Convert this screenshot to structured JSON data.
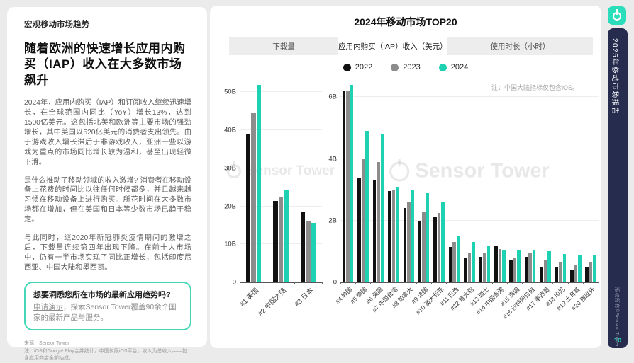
{
  "left_panel": {
    "eyebrow": "宏观移动市场趋势",
    "heading": "随着欧洲的快速增长应用内购买（IAP）收入在大多数市场飙升",
    "paragraphs": [
      "2024年，应用内购买（IAP）和订阅收入继续迅速增长，在全球范围内同比（YoY）增长13%，达到1500亿美元。这包括北美和欧洲等主要市场的强劲增长，其中美国以520亿美元的消费者支出领先。由于游戏收入增长滞后于非游戏收入，亚洲一些以游戏为重点的市场同比增长较为温和，甚至出现轻微下滑。",
      "是什么推动了移动领域的收入激增? 消费者在移动设备上花费的时间比以往任何时候都多，并且越来越习惯在移动设备上进行购买。所花时间在大多数市场都在增加，但在美国和日本等少数市场已趋于稳定。",
      "与此同时，继2020年新冠肺炎疫情期间的激增之后，下载量连续第四年出现下降。在前十大市场中，仍有一半市场实现了同比正增长，包括印度尼西亚、中国大陆和墨西哥。"
    ],
    "cta": {
      "title": "想要洞悉您所在市场的最新应用趋势吗?",
      "link": "申请演示",
      "body_rest": "，探索Sensor Tower覆盖90余个国家的最新产品与服务。"
    },
    "source": "来源：Sensor Tower",
    "note": "注：iOS和Google Play合并统计，中国仅限iOS平台。收入为总收入——包含应用商店全部抽成。"
  },
  "chart_card": {
    "title": "2024年移动市场TOP20",
    "tabs": [
      {
        "label": "下载量",
        "active": false
      },
      {
        "label": "应用内购买（IAP）收入（美元）",
        "active": true
      },
      {
        "label": "使用时长（小时）",
        "active": false
      }
    ],
    "legend": [
      {
        "label": "2022",
        "color": "#111111"
      },
      {
        "label": "2023",
        "color": "#8c8c8c"
      },
      {
        "label": "2024",
        "color": "#1ed1b2"
      }
    ],
    "note": "注：中国大陆指标仅包含iOS。",
    "watermark": "Sensor Tower"
  },
  "sidebar": {
    "report_title": "2025年移动市场报告",
    "copyright": "版权所有©Sensor Tower",
    "page_number": "10",
    "bar_color": "#262c4e",
    "icon_color": "#2adebc",
    "icon": "sensor-tower-logo"
  },
  "chart_data": [
    {
      "type": "bar",
      "title": "2024年移动市场TOP20 — 应用内购买（IAP）收入 前3大市场（十亿美元）",
      "categories": [
        "#1 美国",
        "#2 中国大陆",
        "#3 日本"
      ],
      "series": [
        {
          "name": "2022",
          "color": "#111111",
          "values": [
            39,
            21.5,
            18.5
          ]
        },
        {
          "name": "2023",
          "color": "#8c8c8c",
          "values": [
            44.5,
            22.5,
            16.2
          ]
        },
        {
          "name": "2024",
          "color": "#1ed1b2",
          "values": [
            52,
            24.3,
            15.7
          ]
        }
      ],
      "unit": "B",
      "yticks": [
        0,
        10,
        20,
        30,
        40,
        50
      ],
      "ylim": [
        0,
        54
      ],
      "grid": true,
      "legend_position": "top"
    },
    {
      "type": "bar",
      "title": "2024年移动市场TOP20 — 应用内购买（IAP）收入 第4-20名市场（十亿美元）",
      "categories": [
        "#4 韩国",
        "#5 德国",
        "#6 英国",
        "#7 中国台湾",
        "#8 加拿大",
        "#9 法国",
        "#10 澳大利亚",
        "#11 巴西",
        "#12 意大利",
        "#13 瑞士",
        "#14 中国香港",
        "#15 泰国",
        "#16 沙特阿拉伯",
        "#17 墨西哥",
        "#18 印尼",
        "#19 土耳其",
        "#20 西班牙"
      ],
      "series": [
        {
          "name": "2022",
          "color": "#111111",
          "values": [
            6.2,
            3.4,
            3.3,
            2.95,
            2.4,
            2.0,
            2.1,
            1.15,
            0.8,
            0.82,
            1.17,
            0.74,
            0.83,
            0.5,
            0.51,
            0.39,
            0.51
          ]
        },
        {
          "name": "2023",
          "color": "#8c8c8c",
          "values": [
            6.2,
            4.0,
            3.9,
            3.0,
            2.6,
            2.3,
            2.25,
            1.3,
            0.97,
            0.94,
            1.07,
            0.78,
            0.93,
            0.73,
            0.67,
            0.58,
            0.67
          ]
        },
        {
          "name": "2024",
          "color": "#1ed1b2",
          "values": [
            6.4,
            4.9,
            4.8,
            3.1,
            3.0,
            2.9,
            2.6,
            1.5,
            1.3,
            1.18,
            1.06,
            1.03,
            1.03,
            1.0,
            0.91,
            0.89,
            0.87
          ]
        }
      ],
      "unit": "B",
      "yticks": [
        0,
        2,
        4,
        6
      ],
      "ylim": [
        0,
        6.65
      ],
      "grid": true,
      "legend_position": "top",
      "note": "注：中国大陆指标仅包含iOS。"
    }
  ]
}
